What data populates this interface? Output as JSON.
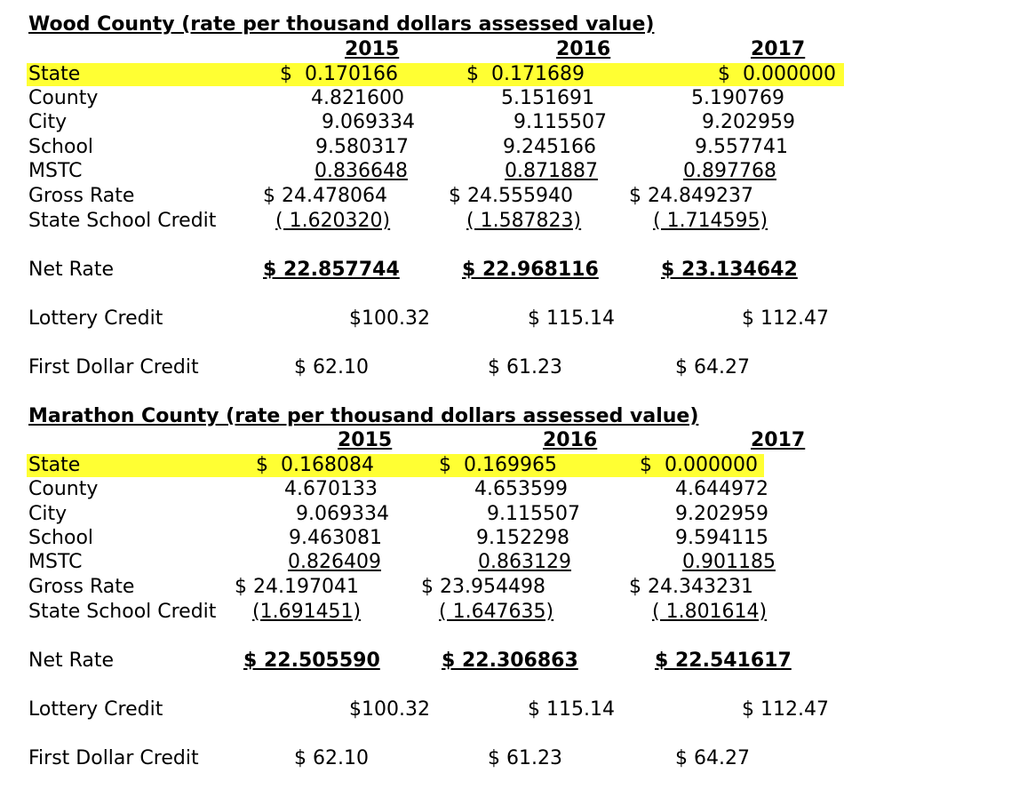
{
  "highlight_color": "#ffff33",
  "wood": {
    "title": "Wood County (rate per thousand dollars assessed value)",
    "years": [
      "2015",
      "2016",
      "2017"
    ],
    "state": {
      "label": "State",
      "v2015": "$  0.170166",
      "v2016": "$  0.171689",
      "v2017": "$  0.000000"
    },
    "county": {
      "label": "County",
      "v2015": "4.821600",
      "v2016": "5.151691",
      "v2017": "5.190769"
    },
    "city": {
      "label": "City",
      "v2015": "9.069334",
      "v2016": "9.115507",
      "v2017": "9.202959"
    },
    "school": {
      "label": "School",
      "v2015": "9.580317",
      "v2016": "9.245166",
      "v2017": "9.557741"
    },
    "mstc": {
      "label": "MSTC",
      "v2015": "0.836648",
      "v2016": "0.871887",
      "v2017": "0.897768"
    },
    "gross": {
      "label": "Gross Rate",
      "v2015": "$ 24.478064",
      "v2016": "$ 24.555940",
      "v2017": "$ 24.849237"
    },
    "credit": {
      "label": "State School Credit",
      "v2015": "( 1.620320)",
      "v2016": "( 1.587823)",
      "v2017": "( 1.714595)"
    },
    "net": {
      "label": "Net Rate",
      "v2015": "$ 22.857744",
      "v2016": "$ 22.968116",
      "v2017": "$ 23.134642"
    },
    "lottery": {
      "label": "Lottery Credit",
      "v2015": "$100.32",
      "v2016": "$ 115.14",
      "v2017": "$ 112.47"
    },
    "first": {
      "label": "First Dollar Credit",
      "v2015": "$ 62.10",
      "v2016": "$ 61.23",
      "v2017": "$ 64.27"
    }
  },
  "marathon": {
    "title": "Marathon County (rate per thousand dollars assessed value)",
    "years": [
      "2015",
      "2016",
      "2017"
    ],
    "state": {
      "label": "State",
      "v2015": "$  0.168084",
      "v2016": "$  0.169965",
      "v2017": "$  0.000000"
    },
    "county": {
      "label": "County",
      "v2015": "4.670133",
      "v2016": "4.653599",
      "v2017": "4.644972"
    },
    "city": {
      "label": "City",
      "v2015": "9.069334",
      "v2016": "9.115507",
      "v2017": "9.202959"
    },
    "school": {
      "label": "School",
      "v2015": "9.463081",
      "v2016": "9.152298",
      "v2017": "9.594115"
    },
    "mstc": {
      "label": "MSTC",
      "v2015": "0.826409",
      "v2016": "0.863129",
      "v2017": "0.901185"
    },
    "gross": {
      "label": "Gross Rate",
      "v2015": "$ 24.197041",
      "v2016": "$ 23.954498",
      "v2017": "$ 24.343231"
    },
    "credit": {
      "label": "State School Credit",
      "v2015": "(1.691451)",
      "v2016": "( 1.647635)",
      "v2017": "( 1.801614)"
    },
    "net": {
      "label": "Net Rate",
      "v2015": "$ 22.505590",
      "v2016": "$ 22.306863",
      "v2017": "$ 22.541617"
    },
    "lottery": {
      "label": "Lottery Credit",
      "v2015": "$100.32",
      "v2016": "$ 115.14",
      "v2017": "$ 112.47"
    },
    "first": {
      "label": "First Dollar Credit",
      "v2015": "$ 62.10",
      "v2016": "$ 61.23",
      "v2017": "$ 64.27"
    }
  }
}
